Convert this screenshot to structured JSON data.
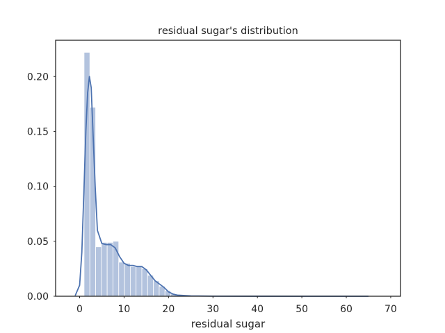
{
  "chart_data": {
    "type": "bar",
    "title": "residual sugar's distribution",
    "xlabel": "residual sugar",
    "ylabel": "",
    "xlim": [
      -5.4,
      72.2
    ],
    "ylim": [
      0,
      0.233
    ],
    "xticks": [
      0,
      10,
      20,
      30,
      40,
      50,
      60,
      70
    ],
    "yticks": [
      0.0,
      0.05,
      0.1,
      0.15,
      0.2
    ],
    "ytick_labels": [
      "0.00",
      "0.05",
      "0.10",
      "0.15",
      "0.20"
    ],
    "grid": false,
    "histogram": {
      "bin_width": 1.3,
      "bin_start": 1.0,
      "values": [
        0.222,
        0.172,
        0.045,
        0.049,
        0.049,
        0.05,
        0.031,
        0.03,
        0.027,
        0.028,
        0.025,
        0.019,
        0.014,
        0.009,
        0.005,
        0.002,
        0.001,
        0.0005,
        0.0003,
        0.0002,
        0.0001,
        0.0001,
        0.0001,
        5e-05
      ]
    },
    "kde": {
      "x": [
        -1.0,
        0.0,
        0.5,
        1.0,
        1.4,
        1.8,
        2.2,
        2.6,
        3.0,
        3.5,
        4.0,
        5.0,
        6.0,
        7.0,
        8.0,
        9.0,
        10.0,
        11.0,
        12.0,
        13.0,
        14.0,
        15.0,
        16.0,
        17.0,
        18.0,
        19.0,
        20.0,
        21.0,
        22.0,
        25.0,
        30.0,
        40.0,
        50.0,
        60.0,
        65.0
      ],
      "y": [
        0.0005,
        0.01,
        0.04,
        0.1,
        0.15,
        0.185,
        0.2,
        0.19,
        0.15,
        0.1,
        0.06,
        0.048,
        0.047,
        0.047,
        0.044,
        0.036,
        0.03,
        0.028,
        0.028,
        0.027,
        0.027,
        0.024,
        0.019,
        0.014,
        0.011,
        0.008,
        0.004,
        0.002,
        0.001,
        0.0003,
        0.0001,
        3e-05,
        1e-05,
        0.0,
        0.0
      ]
    },
    "colors": {
      "bar": "#b3c3de",
      "bar_edge": "#ffffff",
      "line": "#4c72b0",
      "axis": "#262626"
    }
  }
}
